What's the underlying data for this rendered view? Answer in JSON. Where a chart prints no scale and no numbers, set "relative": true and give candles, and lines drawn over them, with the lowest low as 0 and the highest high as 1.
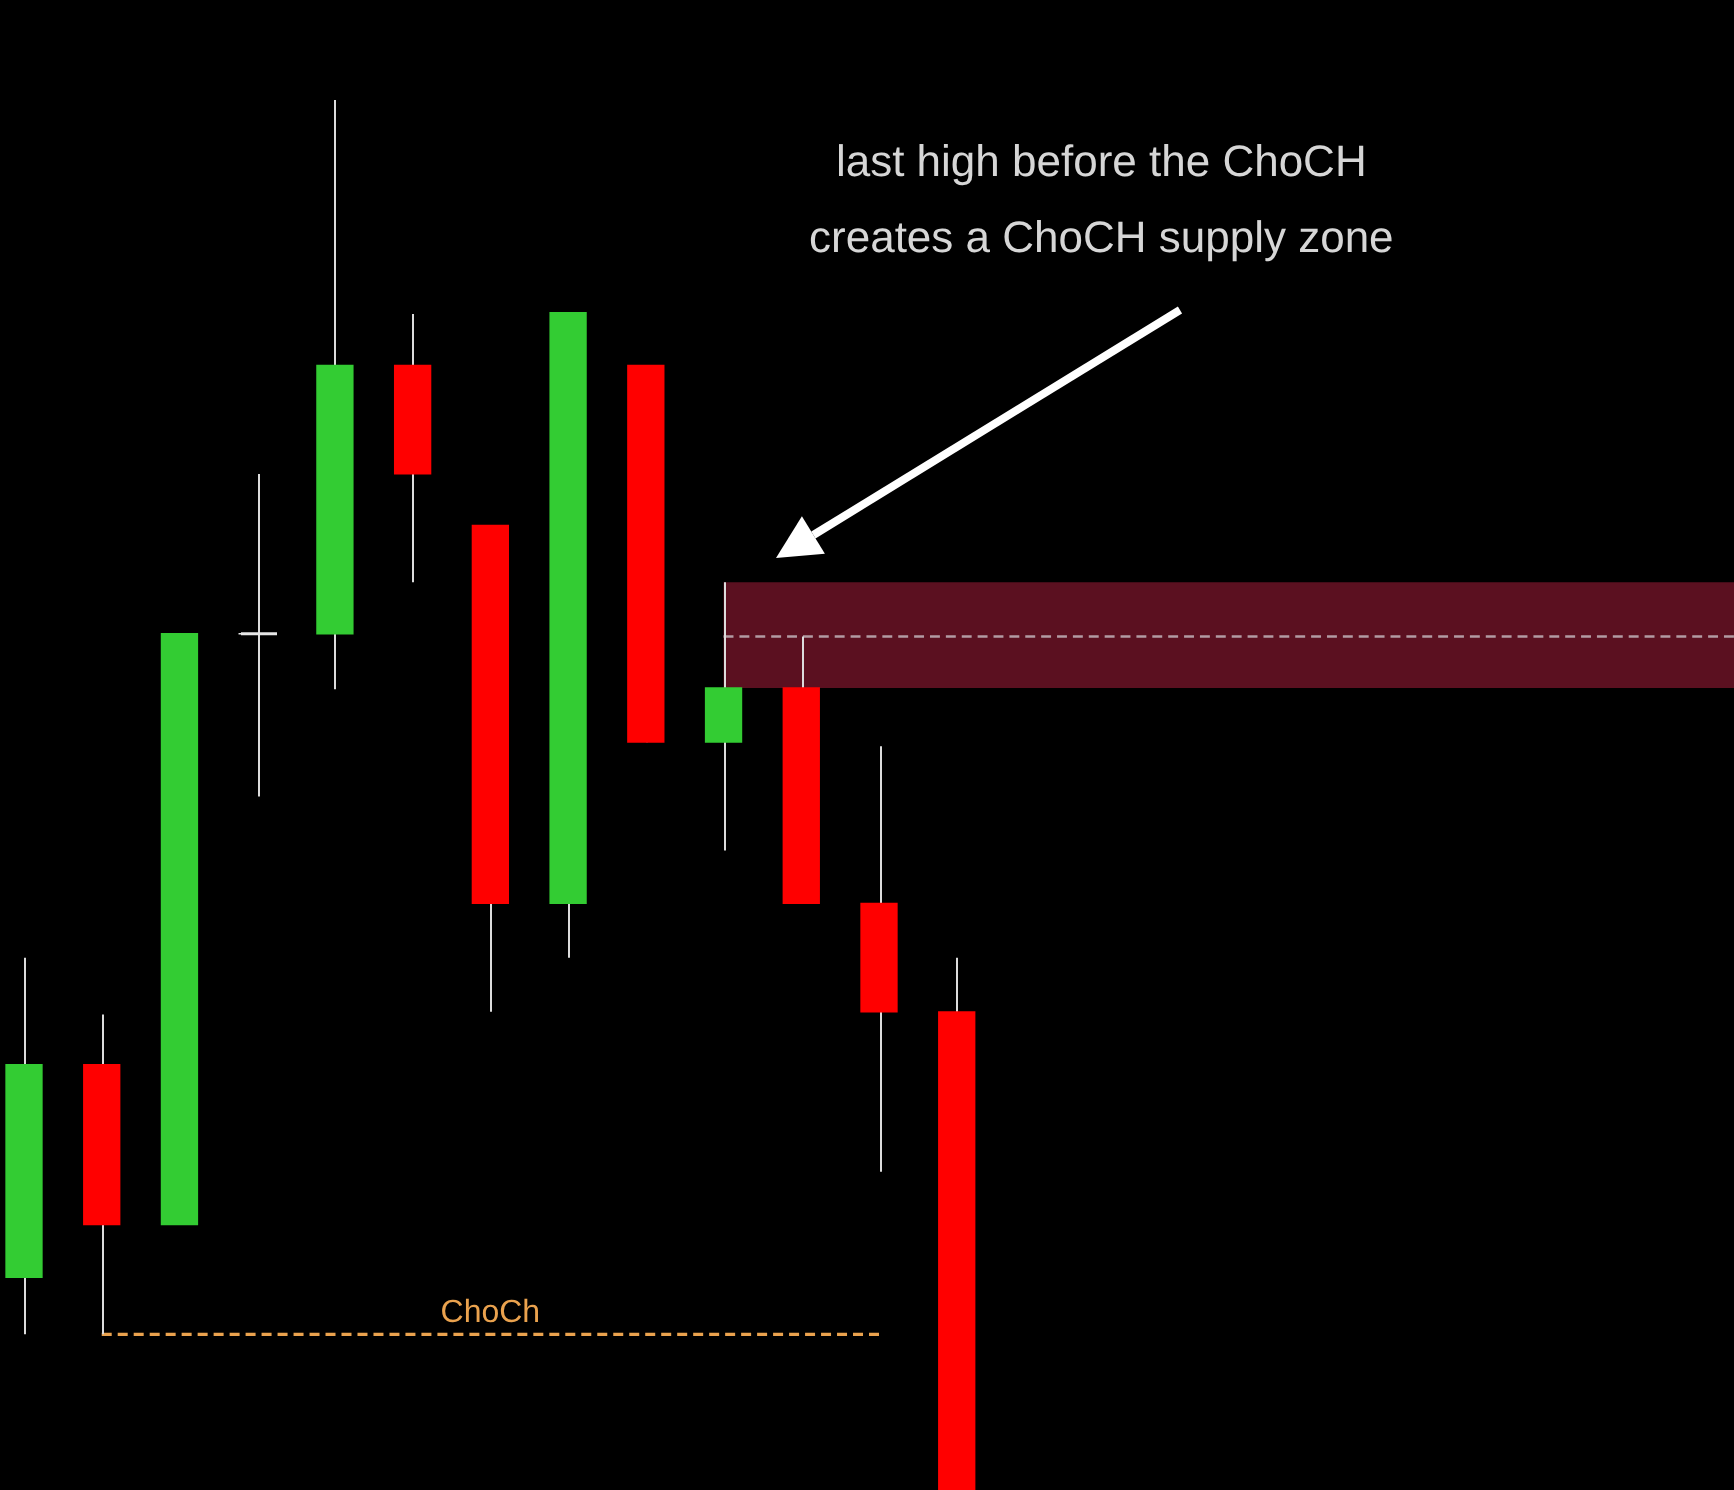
{
  "chart_data": {
    "type": "candlestick",
    "relative": true,
    "tick_labels": false,
    "categories": [
      null,
      null,
      null,
      null,
      null,
      null,
      null,
      null,
      null,
      null,
      null,
      null,
      null,
      null,
      null,
      null,
      null,
      null,
      null,
      null,
      null,
      null,
      null
    ],
    "ohlc": [
      [
        0.153,
        0.383,
        0.112,
        0.306
      ],
      [
        0.306,
        0.342,
        0.112,
        0.191
      ],
      [
        0.191,
        0.616,
        0.191,
        0.616
      ],
      [
        0.616,
        0.731,
        0.499,
        0.616
      ],
      [
        0.616,
        1,
        0.576,
        0.809
      ],
      [
        0.809,
        0.846,
        0.653,
        0.731
      ],
      [
        0.694,
        0.694,
        0.344,
        0.422
      ],
      [
        0.422,
        0.847,
        0.383,
        0.847
      ],
      [
        0.809,
        0.809,
        0.538,
        0.538
      ],
      [
        0.538,
        0.653,
        0.46,
        0.577
      ],
      [
        0.577,
        0.614,
        0.422,
        0.422
      ],
      [
        0.422,
        0.535,
        0.229,
        0.344
      ],
      [
        0.344,
        0.383,
        0,
        0
      ],
      null,
      null,
      null,
      null,
      null,
      null,
      null,
      null,
      null,
      null
    ],
    "colors": [
      "#33cc33",
      "#ff0000",
      "#33cc33",
      "#e6e6e6",
      "#33cc33",
      "#ff0000",
      "#ff0000",
      "#33cc33",
      "#ff0000",
      "#33cc33",
      "#ff0000",
      "#ff0000",
      "#ff0000",
      null,
      null,
      null,
      null,
      null,
      null,
      null,
      null,
      null,
      null
    ],
    "series": [
      {
        "type": "line",
        "name": "ChoCh",
        "color": "#eaa24e",
        "line_style": "dashed",
        "values": [
          null,
          0.112,
          0.112,
          0.112,
          0.112,
          0.112,
          0.112,
          0.112,
          0.112,
          0.112,
          0.112,
          0.112,
          null,
          null,
          null,
          null,
          null,
          null,
          null,
          null,
          null,
          null,
          null
        ]
      },
      {
        "type": "line",
        "color": "#b39ba3",
        "line_style": "dashed",
        "values": [
          null,
          null,
          null,
          null,
          null,
          null,
          null,
          null,
          null,
          0.614,
          0.614,
          0.614,
          0.614,
          0.614,
          0.614,
          0.614,
          0.614,
          0.614,
          0.614,
          0.614,
          0.614,
          0.614,
          0.614
        ],
        "lower": [
          null,
          null,
          null,
          null,
          null,
          null,
          null,
          null,
          null,
          0.577,
          0.577,
          0.577,
          0.577,
          0.577,
          0.577,
          0.577,
          0.577,
          0.577,
          0.577,
          0.577,
          0.577,
          0.577,
          0.577
        ],
        "upper": [
          null,
          null,
          null,
          null,
          null,
          null,
          null,
          null,
          null,
          0.653,
          0.653,
          0.653,
          0.653,
          0.653,
          0.653,
          0.653,
          0.653,
          0.653,
          0.653,
          0.653,
          0.653,
          0.653,
          0.653
        ]
      }
    ],
    "annotations": [
      "last high before the ChoCH creates a ChoCH supply zone"
    ]
  }
}
